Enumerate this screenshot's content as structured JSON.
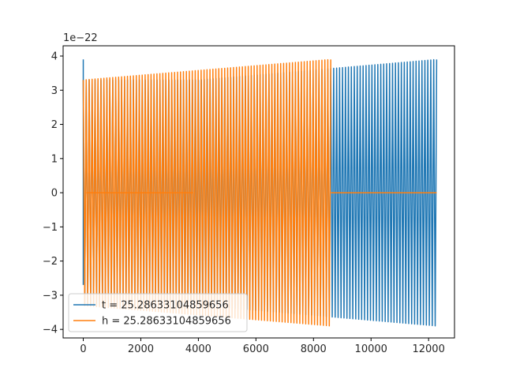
{
  "chart_data": {
    "type": "line",
    "title": "",
    "xlabel": "",
    "ylabel": "",
    "xlim": [
      -700,
      12900
    ],
    "ylim": [
      -4.25,
      4.3
    ],
    "y_offset_label": "1e−22",
    "x_ticks": [
      0,
      2000,
      4000,
      6000,
      8000,
      10000,
      12000
    ],
    "x_tick_labels": [
      "0",
      "2000",
      "4000",
      "6000",
      "8000",
      "10000",
      "12000"
    ],
    "y_ticks": [
      -4,
      -3,
      -2,
      -1,
      0,
      1,
      2,
      3,
      4
    ],
    "y_tick_labels": [
      "−4",
      "−3",
      "−2",
      "−1",
      "0",
      "1",
      "2",
      "3",
      "4"
    ],
    "grid": false,
    "legend_position": "lower-left",
    "series": [
      {
        "name": "t = 25.28633104859656",
        "color": "#1f77b4",
        "oscillation_periods_approx": 120,
        "segments": [
          {
            "x": [
              0,
              4000
            ],
            "amplitude_start": 3.3,
            "amplitude_end": 3.3
          },
          {
            "x": [
              4000,
              12280
            ],
            "amplitude_start": 3.3,
            "amplitude_end": 3.9
          }
        ],
        "initial_spike": 3.9
      },
      {
        "name": "h = 25.28633104859656",
        "color": "#ff7f0e",
        "oscillation_periods_approx": 84,
        "segments": [
          {
            "x": [
              0,
              8600
            ],
            "amplitude_start": 3.3,
            "amplitude_end": 3.9
          },
          {
            "x": [
              8600,
              12280
            ],
            "amplitude_start": 0.0,
            "amplitude_end": 0.0
          }
        ],
        "flat_center_line_x": [
          100,
          3830
        ]
      }
    ]
  }
}
